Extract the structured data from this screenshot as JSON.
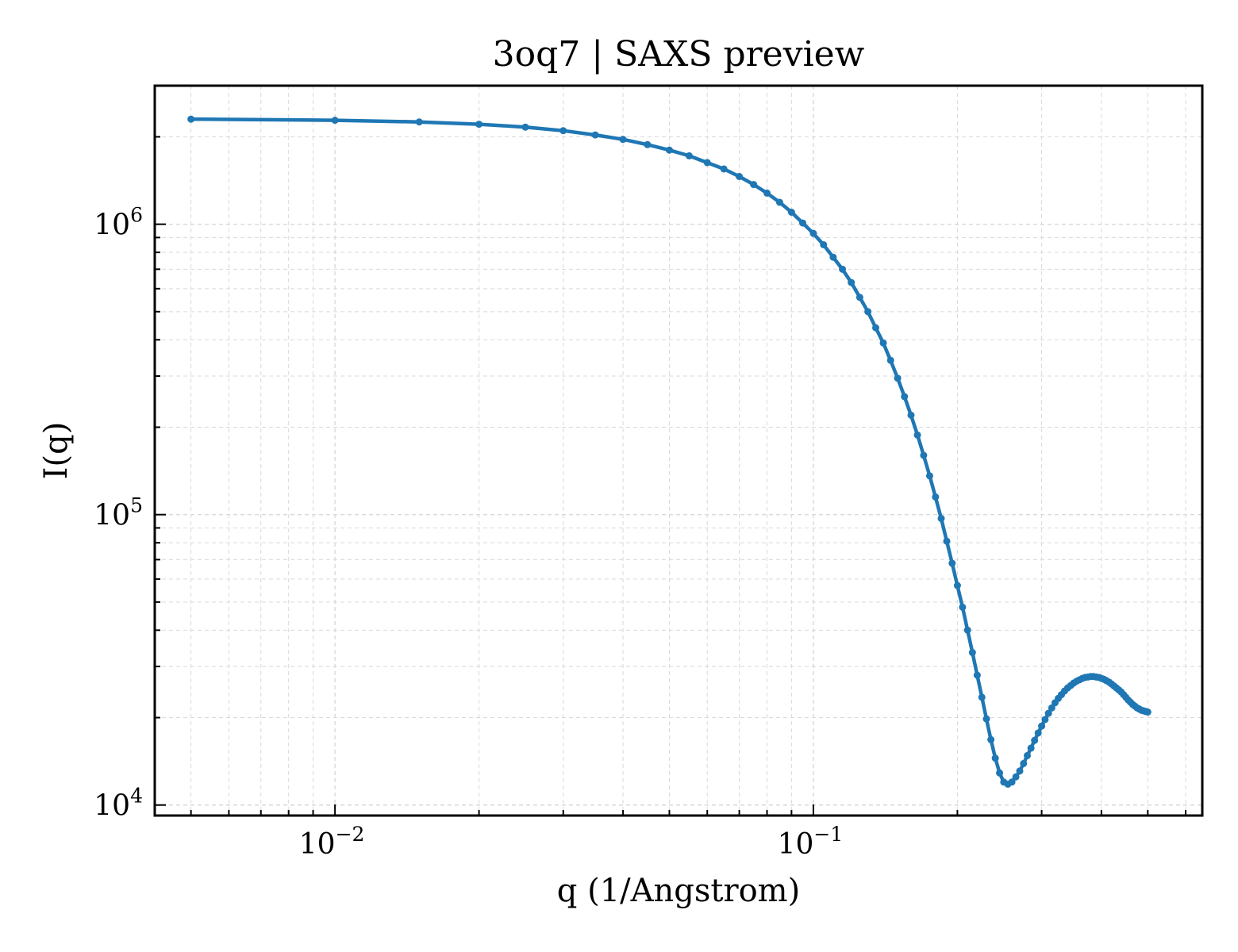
{
  "chart_data": {
    "type": "line",
    "title": "3oq7 | SAXS preview",
    "xlabel": "q (1/Angstrom)",
    "ylabel": "I(q)",
    "xscale": "log",
    "yscale": "log",
    "xlim": [
      0.0042,
      0.65
    ],
    "ylim": [
      9200,
      3000000
    ],
    "grid": true,
    "legend": "none",
    "colors": {
      "line": "#1f77b4",
      "grid": "#d9d9d9",
      "axes": "#000000"
    },
    "x_ticks": [
      {
        "value": 0.01,
        "base": "10",
        "exp": "−2"
      },
      {
        "value": 0.1,
        "base": "10",
        "exp": "−1"
      }
    ],
    "y_ticks": [
      {
        "value": 10000,
        "base": "10",
        "exp": "4"
      },
      {
        "value": 100000,
        "base": "10",
        "exp": "5"
      },
      {
        "value": 1000000,
        "base": "10",
        "exp": "6"
      }
    ],
    "series": [
      {
        "x": [
          0.005,
          0.01,
          0.015,
          0.02,
          0.025,
          0.03,
          0.035,
          0.04,
          0.045,
          0.05,
          0.055,
          0.06,
          0.065,
          0.07,
          0.075,
          0.08,
          0.085,
          0.09,
          0.095,
          0.1,
          0.105,
          0.11,
          0.115,
          0.12,
          0.125,
          0.13,
          0.135,
          0.14,
          0.145,
          0.15,
          0.155,
          0.16,
          0.165,
          0.17,
          0.175,
          0.18,
          0.185,
          0.19,
          0.195,
          0.2,
          0.205,
          0.21,
          0.215,
          0.22,
          0.225,
          0.23,
          0.235,
          0.24,
          0.245,
          0.25,
          0.255,
          0.26,
          0.265,
          0.27,
          0.275,
          0.28,
          0.285,
          0.29,
          0.295,
          0.3,
          0.305,
          0.31,
          0.315,
          0.32,
          0.325,
          0.33,
          0.335,
          0.34,
          0.345,
          0.35,
          0.355,
          0.36,
          0.365,
          0.37,
          0.375,
          0.38,
          0.385,
          0.39,
          0.395,
          0.4,
          0.405,
          0.41,
          0.415,
          0.42,
          0.425,
          0.43,
          0.435,
          0.44,
          0.445,
          0.45,
          0.455,
          0.46,
          0.465,
          0.47,
          0.475,
          0.48,
          0.485,
          0.49,
          0.495,
          0.5
        ],
        "y": [
          2300000,
          2280000,
          2250000,
          2210000,
          2160000,
          2100000,
          2030000,
          1960000,
          1880000,
          1800000,
          1720000,
          1630000,
          1550000,
          1460000,
          1370000,
          1280000,
          1190000,
          1100000,
          1010000,
          930000,
          850000,
          770000,
          700000,
          630000,
          560000,
          500000,
          440000,
          390000,
          340000,
          295000,
          255000,
          220000,
          188000,
          160000,
          136000,
          115000,
          97000,
          81000,
          68000,
          57000,
          48000,
          40000,
          33500,
          28000,
          23500,
          19800,
          16800,
          14500,
          12900,
          12000,
          11800,
          12000,
          12500,
          13100,
          13900,
          14800,
          15700,
          16700,
          17700,
          18700,
          19700,
          20700,
          21600,
          22500,
          23300,
          24000,
          24700,
          25300,
          25800,
          26300,
          26700,
          27000,
          27300,
          27500,
          27600,
          27700,
          27700,
          27600,
          27500,
          27300,
          27100,
          26800,
          26500,
          26100,
          25700,
          25300,
          24900,
          24500,
          24000,
          23500,
          23000,
          22600,
          22200,
          21900,
          21600,
          21400,
          21200,
          21100,
          21000,
          20900
        ]
      }
    ]
  }
}
